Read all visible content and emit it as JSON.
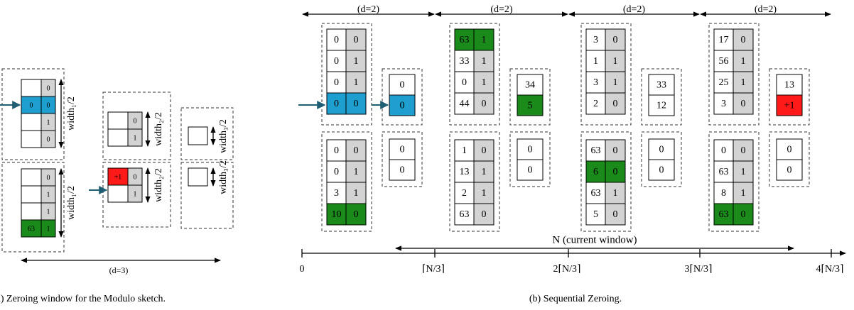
{
  "panel_a": {
    "caption": "(a) Zeroing window for the Modulo sketch.",
    "span_label": "(d=3)",
    "levels": [
      {
        "width_label": "width₁/2",
        "top": [
          [
            null,
            0
          ],
          [
            0,
            0
          ],
          [
            null,
            1
          ],
          [
            null,
            0
          ]
        ],
        "bottom": [
          [
            null,
            0
          ],
          [
            null,
            1
          ],
          [
            null,
            1
          ],
          [
            63,
            1
          ]
        ]
      },
      {
        "width_label": "width₂/2",
        "top": [
          [
            null,
            0
          ],
          [
            null,
            1
          ]
        ],
        "bottom": [
          [
            "+1",
            0
          ],
          [
            null,
            1
          ]
        ]
      },
      {
        "width_label": "width₃/2",
        "top": [
          [
            null
          ]
        ],
        "bottom": [
          [
            null
          ]
        ]
      }
    ]
  },
  "panel_b": {
    "caption": "(b) Sequential Zeroing.",
    "window_label": "N (current window)",
    "axis_ticks": [
      "0",
      "⌈N/3⌉",
      "2⌈N/3⌉",
      "3⌈N/3⌉",
      "4⌈N/3⌉"
    ],
    "groups": [
      {
        "span_label": "(d=2)",
        "top_column": [
          [
            0,
            0
          ],
          [
            0,
            1
          ],
          [
            0,
            1
          ],
          [
            0,
            0
          ]
        ],
        "top_box": [
          0,
          0
        ],
        "bottom_column": [
          [
            0,
            0
          ],
          [
            0,
            1
          ],
          [
            3,
            1
          ],
          [
            10,
            0
          ]
        ],
        "bottom_box": [
          0,
          0
        ]
      },
      {
        "span_label": "(d=2)",
        "top_column": [
          [
            63,
            1
          ],
          [
            33,
            1
          ],
          [
            0,
            1
          ],
          [
            44,
            0
          ]
        ],
        "top_box": [
          34,
          5
        ],
        "bottom_column": [
          [
            1,
            0
          ],
          [
            13,
            1
          ],
          [
            2,
            1
          ],
          [
            63,
            0
          ]
        ],
        "bottom_box": [
          0,
          0
        ]
      },
      {
        "span_label": "(d=2)",
        "top_column": [
          [
            3,
            0
          ],
          [
            1,
            1
          ],
          [
            3,
            1
          ],
          [
            2,
            0
          ]
        ],
        "top_box": [
          33,
          12
        ],
        "bottom_column": [
          [
            63,
            0
          ],
          [
            6,
            0
          ],
          [
            63,
            1
          ],
          [
            5,
            0
          ]
        ],
        "bottom_box": [
          0,
          0
        ]
      },
      {
        "span_label": "(d=2)",
        "top_column": [
          [
            17,
            0
          ],
          [
            56,
            1
          ],
          [
            25,
            1
          ],
          [
            3,
            0
          ]
        ],
        "top_box": [
          13,
          "+1"
        ],
        "bottom_column": [
          [
            0,
            0
          ],
          [
            63,
            1
          ],
          [
            8,
            1
          ],
          [
            63,
            0
          ]
        ],
        "bottom_box": [
          0,
          0
        ]
      }
    ]
  }
}
